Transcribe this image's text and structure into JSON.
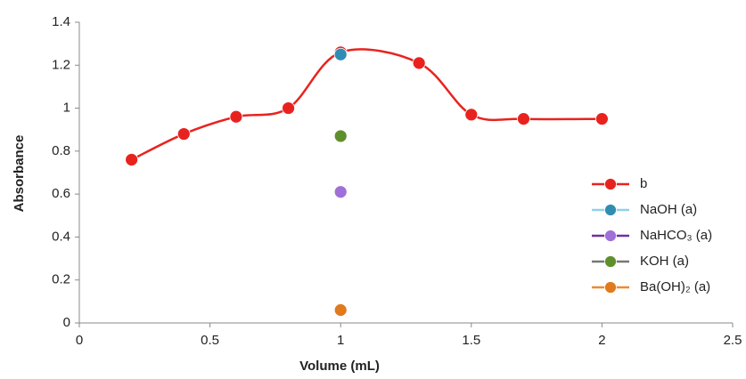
{
  "chart_data": {
    "type": "line",
    "x_label": "Volume  (mL)",
    "y_label": "Absorbance",
    "xlim": [
      0,
      2.5
    ],
    "xticks": [
      0,
      0.5,
      1,
      1.5,
      2,
      2.5
    ],
    "ylim": [
      0,
      1.4
    ],
    "yticks": [
      0,
      0.2,
      0.4,
      0.6,
      0.8,
      1,
      1.2,
      1.4
    ],
    "smooth": true,
    "legend": "right",
    "series": [
      {
        "name": "b",
        "color": "#e8231f",
        "line_color": "#e8231f",
        "x": [
          0.2,
          0.4,
          0.6,
          0.8,
          1.0,
          1.3,
          1.5,
          1.7,
          2.0
        ],
        "values": [
          0.76,
          0.88,
          0.96,
          1.0,
          1.26,
          1.21,
          0.97,
          0.95,
          0.95
        ]
      },
      {
        "name": "NaOH (a)",
        "color": "#2f8db3",
        "line_color": "#8fd0e8",
        "x": [
          1.0
        ],
        "values": [
          1.25
        ]
      },
      {
        "name": "NaHCO₃ (a)",
        "color": "#a070d8",
        "line_color": "#7030a0",
        "x": [
          1.0
        ],
        "values": [
          0.61
        ]
      },
      {
        "name": "KOH (a)",
        "color": "#5f8f2c",
        "line_color": "#777777",
        "x": [
          1.0
        ],
        "values": [
          0.87
        ]
      },
      {
        "name": "Ba(OH)₂ (a)",
        "color": "#e07a1c",
        "line_color": "#f08a30",
        "x": [
          1.0
        ],
        "values": [
          0.06
        ]
      }
    ]
  }
}
